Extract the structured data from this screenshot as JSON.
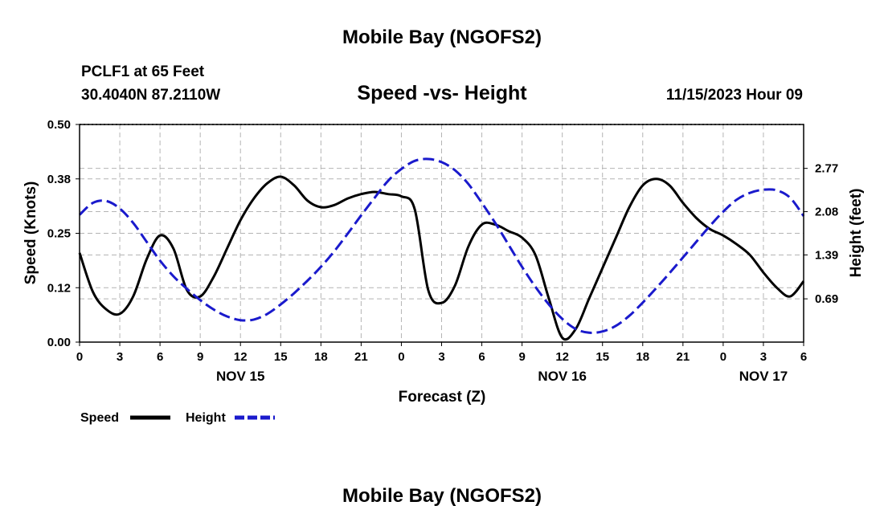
{
  "header": {
    "title": "Mobile Bay (NGOFS2)",
    "station": "PCLF1 at 65 Feet",
    "coords": "30.4040N  87.2110W",
    "subtitle": "Speed -vs- Height",
    "issued": "11/15/2023 Hour 09"
  },
  "footer": {
    "title": "Mobile Bay (NGOFS2)"
  },
  "colors": {
    "speed": "#000000",
    "height": "#1a1acc",
    "grid": "#b4b4b4"
  },
  "chart_data": {
    "type": "line",
    "xlabel": "Forecast (Z)",
    "ylabel": "Speed (Knots)",
    "y2label": "Height (feet)",
    "xlim": [
      0,
      54
    ],
    "x_ticks": [
      0,
      3,
      6,
      9,
      12,
      15,
      18,
      21,
      24,
      27,
      30,
      33,
      36,
      39,
      42,
      45,
      48,
      51,
      54
    ],
    "x_tick_labels": [
      "0",
      "3",
      "6",
      "9",
      "12",
      "15",
      "18",
      "21",
      "0",
      "3",
      "6",
      "9",
      "12",
      "15",
      "18",
      "21",
      "0",
      "3",
      "6"
    ],
    "date_labels": [
      {
        "x": 12,
        "text": "NOV 15"
      },
      {
        "x": 36,
        "text": "NOV 16"
      },
      {
        "x": 51,
        "text": "NOV 17"
      }
    ],
    "ylim": [
      0,
      0.5
    ],
    "y_ticks": [
      0,
      0.125,
      0.25,
      0.375,
      0.5
    ],
    "y_tick_labels": [
      "0.00",
      "0.12",
      "0.25",
      "0.38",
      "0.50"
    ],
    "y2_ticks": [
      0.69,
      1.39,
      2.08,
      2.77
    ],
    "y2_tick_labels": [
      "0.69",
      "1.39",
      "2.08",
      "2.77"
    ],
    "y2lim": [
      0.0,
      3.47
    ],
    "grid": true,
    "legend": {
      "position": "bottom-left",
      "entries": [
        "Speed",
        "Height"
      ]
    },
    "series": [
      {
        "name": "Speed",
        "axis": "left",
        "style": "solid",
        "x": [
          0,
          1,
          2,
          3,
          4,
          5,
          6,
          7,
          8,
          9,
          10,
          11,
          12,
          13,
          14,
          15,
          16,
          17,
          18,
          19,
          20,
          21,
          22,
          23,
          24,
          25,
          26,
          27,
          28,
          29,
          30,
          31,
          32,
          33,
          34,
          35,
          36,
          37,
          38,
          39,
          40,
          41,
          42,
          43,
          44,
          45,
          46,
          47,
          48,
          49,
          50,
          51,
          52,
          53,
          54
        ],
        "values": [
          0.205,
          0.115,
          0.075,
          0.065,
          0.105,
          0.19,
          0.245,
          0.215,
          0.12,
          0.105,
          0.15,
          0.215,
          0.28,
          0.33,
          0.365,
          0.38,
          0.36,
          0.325,
          0.31,
          0.315,
          0.33,
          0.34,
          0.345,
          0.34,
          0.335,
          0.305,
          0.12,
          0.09,
          0.13,
          0.22,
          0.27,
          0.27,
          0.255,
          0.24,
          0.2,
          0.1,
          0.01,
          0.03,
          0.1,
          0.17,
          0.24,
          0.31,
          0.36,
          0.375,
          0.36,
          0.32,
          0.285,
          0.26,
          0.245,
          0.225,
          0.2,
          0.16,
          0.125,
          0.105,
          0.14
        ]
      },
      {
        "name": "Height",
        "axis": "right",
        "style": "dashed",
        "x": [
          0,
          1,
          2,
          3,
          4,
          5,
          6,
          7,
          8,
          9,
          10,
          11,
          12,
          13,
          14,
          15,
          16,
          17,
          18,
          19,
          20,
          21,
          22,
          23,
          24,
          25,
          26,
          27,
          28,
          29,
          30,
          31,
          32,
          33,
          34,
          35,
          36,
          37,
          38,
          39,
          40,
          41,
          42,
          43,
          44,
          45,
          46,
          47,
          48,
          49,
          50,
          51,
          52,
          53,
          54
        ],
        "values": [
          2.03,
          2.22,
          2.25,
          2.13,
          1.9,
          1.6,
          1.3,
          1.05,
          0.85,
          0.67,
          0.52,
          0.41,
          0.35,
          0.36,
          0.45,
          0.6,
          0.78,
          0.98,
          1.2,
          1.45,
          1.73,
          2.02,
          2.3,
          2.57,
          2.76,
          2.89,
          2.92,
          2.87,
          2.74,
          2.52,
          2.22,
          1.9,
          1.55,
          1.2,
          0.88,
          0.6,
          0.37,
          0.21,
          0.15,
          0.17,
          0.26,
          0.42,
          0.63,
          0.86,
          1.1,
          1.35,
          1.6,
          1.85,
          2.08,
          2.27,
          2.38,
          2.43,
          2.42,
          2.3,
          2.01
        ]
      }
    ]
  }
}
